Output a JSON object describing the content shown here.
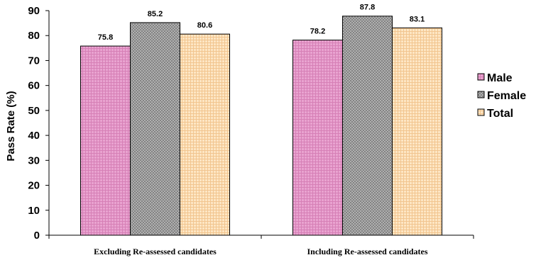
{
  "chart_data": {
    "type": "bar",
    "categories": [
      "Excluding Re-assessed candidates",
      "Including Re-assessed candidates"
    ],
    "series": [
      {
        "name": "Male",
        "values": [
          75.8,
          78.2
        ],
        "color": "#e9a3d0",
        "pattern": "grid"
      },
      {
        "name": "Female",
        "values": [
          85.2,
          87.8
        ],
        "color": "#a6a6a6",
        "pattern": "crosshatch"
      },
      {
        "name": "Total",
        "values": [
          80.6,
          83.1
        ],
        "color": "#fbdcae",
        "pattern": "grid"
      }
    ],
    "title": "",
    "xlabel": "",
    "ylabel": "Pass Rate (%)",
    "ylim": [
      0,
      90
    ],
    "yticks": [
      0,
      10,
      20,
      30,
      40,
      50,
      60,
      70,
      80,
      90
    ],
    "grid": false,
    "legend_position": "right",
    "data_labels": true
  }
}
